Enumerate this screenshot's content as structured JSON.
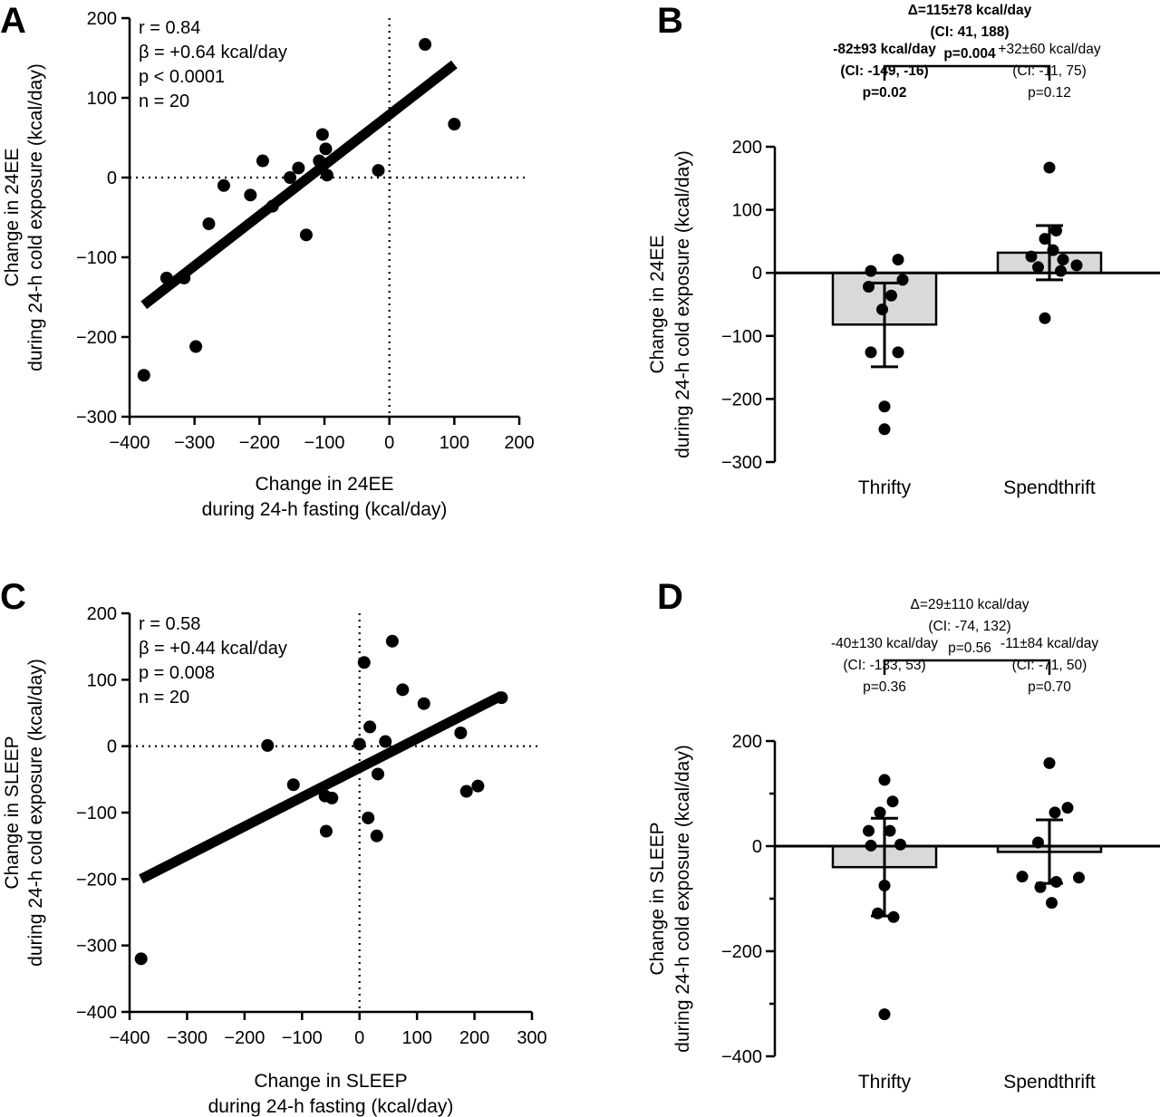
{
  "chart_data": [
    {
      "panel": "A",
      "type": "scatter",
      "xlabel": [
        "Change in 24EE",
        "during 24-h fasting (kcal/day)"
      ],
      "ylabel": [
        "Change in 24EE",
        "during 24-h cold exposure (kcal/day)"
      ],
      "xlim": [
        -400,
        200
      ],
      "ylim": [
        -300,
        200
      ],
      "xticks": [
        -400,
        -300,
        -200,
        -100,
        0,
        100,
        200
      ],
      "yticks": [
        -300,
        -200,
        -100,
        0,
        100,
        200
      ],
      "xtick_labels": [
        "−400",
        "−300",
        "−200",
        "−100",
        "0",
        "100",
        "200"
      ],
      "ytick_labels": [
        "−300",
        "−200",
        "−100",
        "0",
        "100",
        "200"
      ],
      "stats": [
        "r = 0.84",
        "β = +0.64 kcal/day",
        "p < 0.0001",
        "n = 20"
      ],
      "points": [
        {
          "x": -378,
          "y": -248
        },
        {
          "x": -343,
          "y": -126
        },
        {
          "x": -316,
          "y": -126
        },
        {
          "x": -298,
          "y": -212
        },
        {
          "x": -278,
          "y": -58
        },
        {
          "x": -255,
          "y": -10
        },
        {
          "x": -214,
          "y": -22
        },
        {
          "x": -195,
          "y": 21
        },
        {
          "x": -180,
          "y": -36
        },
        {
          "x": -153,
          "y": 0
        },
        {
          "x": -140,
          "y": 12
        },
        {
          "x": -128,
          "y": -72
        },
        {
          "x": -108,
          "y": 21
        },
        {
          "x": -103,
          "y": 54
        },
        {
          "x": -98,
          "y": 36
        },
        {
          "x": -96,
          "y": 3
        },
        {
          "x": -17,
          "y": 9
        },
        {
          "x": 55,
          "y": 167
        },
        {
          "x": 100,
          "y": 67
        },
        {
          "x": -102,
          "y": 17
        }
      ],
      "fit_line": {
        "x": [
          -378,
          100
        ],
        "y": [
          -160,
          142
        ]
      },
      "reference_lines": {
        "x": 0,
        "y": 0
      }
    },
    {
      "panel": "B",
      "type": "bar",
      "ylabel": [
        "Change in 24EE",
        "during 24-h cold exposure (kcal/day)"
      ],
      "ylim": [
        -300,
        200
      ],
      "yticks": [
        -300,
        -200,
        -100,
        0,
        100,
        200
      ],
      "ytick_labels": [
        "−300",
        "−200",
        "−100",
        "0",
        "100",
        "200"
      ],
      "categories": [
        "Thrifty",
        "Spendthrift"
      ],
      "values": [
        -82,
        32
      ],
      "error": [
        {
          "low": -149,
          "high": -16
        },
        {
          "low": -11,
          "high": 75
        }
      ],
      "points": [
        [
          {
            "dx": 0.3,
            "y": 21
          },
          {
            "dx": -0.3,
            "y": 3
          },
          {
            "dx": 0.4,
            "y": -11
          },
          {
            "dx": -0.35,
            "y": -22
          },
          {
            "dx": 0.15,
            "y": -36
          },
          {
            "dx": -0.05,
            "y": -58
          },
          {
            "dx": 0.3,
            "y": -126
          },
          {
            "dx": -0.3,
            "y": -126
          },
          {
            "dx": 0.0,
            "y": -212
          },
          {
            "dx": 0.0,
            "y": -248
          }
        ],
        [
          {
            "dx": 0.0,
            "y": 167
          },
          {
            "dx": 0.15,
            "y": 67
          },
          {
            "dx": -0.1,
            "y": 54
          },
          {
            "dx": 0.08,
            "y": 36
          },
          {
            "dx": -0.4,
            "y": 26
          },
          {
            "dx": 0.3,
            "y": 21
          },
          {
            "dx": 0.6,
            "y": 12
          },
          {
            "dx": -0.25,
            "y": 9
          },
          {
            "dx": 0.25,
            "y": 3
          },
          {
            "dx": -0.1,
            "y": -72
          }
        ]
      ],
      "group_annotations": [
        {
          "bold": true,
          "lines": [
            "-82±93 kcal/day",
            "(CI: -149, -16)",
            "p=0.02"
          ]
        },
        {
          "bold": false,
          "lines": [
            "+32±60 kcal/day",
            "(CI: -11, 75)",
            "p=0.12"
          ]
        }
      ],
      "comparison": {
        "bold": true,
        "lines": [
          "Δ=115±78 kcal/day",
          "(CI: 41, 188)",
          "p=0.004"
        ]
      }
    },
    {
      "panel": "C",
      "type": "scatter",
      "xlabel": [
        "Change in SLEEP",
        "during 24-h fasting (kcal/day)"
      ],
      "ylabel": [
        "Change in SLEEP",
        "during 24-h cold exposure (kcal/day)"
      ],
      "xlim": [
        -400,
        300
      ],
      "ylim": [
        -400,
        200
      ],
      "xticks": [
        -400,
        -300,
        -200,
        -100,
        0,
        100,
        200,
        300
      ],
      "yticks": [
        -400,
        -300,
        -200,
        -100,
        0,
        100,
        200
      ],
      "xtick_labels": [
        "−400",
        "−300",
        "−200",
        "−100",
        "0",
        "100",
        "200",
        "300"
      ],
      "ytick_labels": [
        "−400",
        "−300",
        "−200",
        "−100",
        "0",
        "100",
        "200"
      ],
      "stats": [
        "r = 0.58",
        "β = +0.44 kcal/day",
        "p = 0.008",
        "n = 20"
      ],
      "points": [
        {
          "x": -380,
          "y": -320
        },
        {
          "x": -160,
          "y": 1
        },
        {
          "x": -115,
          "y": -58
        },
        {
          "x": -60,
          "y": -75
        },
        {
          "x": -48,
          "y": -78
        },
        {
          "x": -58,
          "y": -128
        },
        {
          "x": 0,
          "y": 3
        },
        {
          "x": 8,
          "y": 126
        },
        {
          "x": 15,
          "y": -108
        },
        {
          "x": 18,
          "y": 29
        },
        {
          "x": 30,
          "y": -135
        },
        {
          "x": 32,
          "y": -42
        },
        {
          "x": 45,
          "y": 7
        },
        {
          "x": 57,
          "y": 158
        },
        {
          "x": 75,
          "y": 85
        },
        {
          "x": 112,
          "y": 64
        },
        {
          "x": 176,
          "y": 20
        },
        {
          "x": 186,
          "y": -68
        },
        {
          "x": 206,
          "y": -60
        },
        {
          "x": 247,
          "y": 73
        }
      ],
      "fit_line": {
        "x": [
          -380,
          247
        ],
        "y": [
          -200,
          76
        ]
      },
      "reference_lines": {
        "x": 0,
        "y": 0
      }
    },
    {
      "panel": "D",
      "type": "bar",
      "ylabel": [
        "Change in SLEEP",
        "during 24-h cold exposure (kcal/day)"
      ],
      "ylim": [
        -400,
        200
      ],
      "yticks": [
        -400,
        -200,
        0,
        200
      ],
      "ytick_labels": [
        "−400",
        "−200",
        "0",
        "200"
      ],
      "minor_yticks": [
        -300,
        -100,
        100
      ],
      "categories": [
        "Thrifty",
        "Spendthrift"
      ],
      "values": [
        -40,
        -11
      ],
      "error": [
        {
          "low": -133,
          "high": 53
        },
        {
          "low": -71,
          "high": 50
        }
      ],
      "points": [
        [
          {
            "dx": 0.0,
            "y": 126
          },
          {
            "dx": 0.18,
            "y": 85
          },
          {
            "dx": -0.1,
            "y": 64
          },
          {
            "dx": 0.12,
            "y": 29
          },
          {
            "dx": -0.35,
            "y": 29
          },
          {
            "dx": 0.35,
            "y": 3
          },
          {
            "dx": -0.3,
            "y": 1
          },
          {
            "dx": 0.0,
            "y": -75
          },
          {
            "dx": -0.15,
            "y": -128
          },
          {
            "dx": 0.2,
            "y": -135
          },
          {
            "dx": 0.0,
            "y": -320
          }
        ],
        [
          {
            "dx": 0.0,
            "y": 158
          },
          {
            "dx": 0.4,
            "y": 73
          },
          {
            "dx": 0.12,
            "y": 64
          },
          {
            "dx": -0.25,
            "y": 7
          },
          {
            "dx": 0.65,
            "y": -60
          },
          {
            "dx": -0.6,
            "y": -58
          },
          {
            "dx": 0.15,
            "y": -68
          },
          {
            "dx": -0.2,
            "y": -78
          },
          {
            "dx": 0.05,
            "y": -108
          }
        ]
      ],
      "group_annotations": [
        {
          "bold": false,
          "lines": [
            "-40±130 kcal/day",
            "(CI: -133, 53)",
            "p=0.36"
          ]
        },
        {
          "bold": false,
          "lines": [
            "-11±84 kcal/day",
            "(CI: -71, 50)",
            "p=0.70"
          ]
        }
      ],
      "comparison": {
        "bold": false,
        "lines": [
          "Δ=29±110 kcal/day",
          "(CI: -74, 132)",
          "p=0.56"
        ]
      }
    }
  ],
  "colors": {
    "ink": "#000000",
    "bar_fill": "#d9d9d9",
    "background": "#ffffff"
  }
}
